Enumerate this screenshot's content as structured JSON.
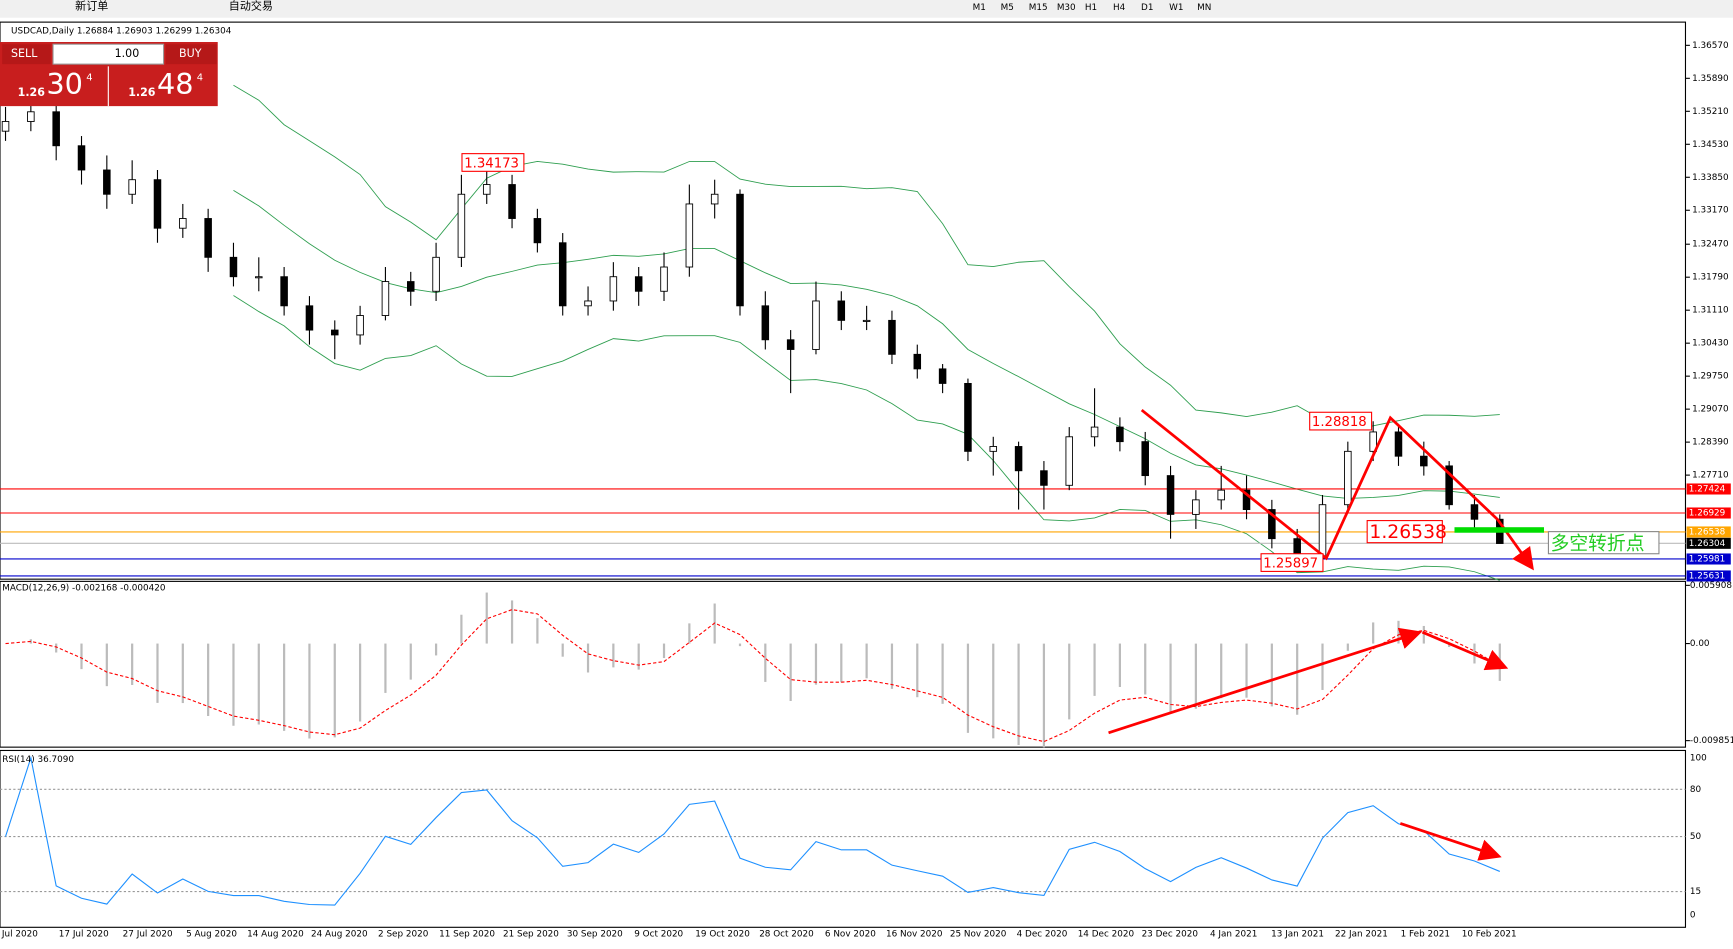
{
  "toolbar": {
    "new_order": "新订单",
    "auto_trading": "自动交易",
    "timeframes": [
      "M1",
      "M5",
      "M15",
      "M30",
      "H1",
      "H4",
      "D1",
      "W1",
      "MN"
    ]
  },
  "trade_panel": {
    "sell": "SELL",
    "buy": "BUY",
    "lots": "1.00",
    "sell_big": "1.26",
    "sell_pips": "30",
    "sell_point": "4",
    "buy_big": "1.26",
    "buy_pips": "48",
    "buy_point": "4"
  },
  "chart": {
    "symbol_info": "USDCAD,Daily  1.26884 1.26903 1.26299 1.26304",
    "ylim": [
      1.25588,
      1.37003
    ],
    "yticks": [
      {
        "value": 1.3657,
        "label": "1.36570"
      },
      {
        "value": 1.3589,
        "label": "1.35890"
      },
      {
        "value": 1.3521,
        "label": "1.35210"
      },
      {
        "value": 1.3453,
        "label": "1.34530"
      },
      {
        "value": 1.3385,
        "label": "1.33850"
      },
      {
        "value": 1.3317,
        "label": "1.33170"
      },
      {
        "value": 1.3247,
        "label": "1.32470"
      },
      {
        "value": 1.3179,
        "label": "1.31790"
      },
      {
        "value": 1.3111,
        "label": "1.31110"
      },
      {
        "value": 1.3043,
        "label": "1.30430"
      },
      {
        "value": 1.2975,
        "label": "1.29750"
      },
      {
        "value": 1.2907,
        "label": "1.29070"
      },
      {
        "value": 1.2839,
        "label": "1.28390"
      },
      {
        "value": 1.2771,
        "label": "1.27710"
      }
    ],
    "price_lines": [
      {
        "value": 1.27424,
        "color": "#ff0000"
      },
      {
        "value": 1.26929,
        "color": "#ff0000"
      },
      {
        "value": 1.26538,
        "color": "#ffa500"
      },
      {
        "value": 1.26304,
        "color": "#000000"
      },
      {
        "value": 1.25981,
        "color": "#0000cc"
      },
      {
        "value": 1.25631,
        "color": "#0000cc"
      }
    ],
    "candles": [
      [
        1.348,
        1.353,
        1.346,
        1.35
      ],
      [
        1.35,
        1.356,
        1.348,
        1.352
      ],
      [
        1.352,
        1.354,
        1.342,
        1.345
      ],
      [
        1.345,
        1.347,
        1.337,
        1.34
      ],
      [
        1.34,
        1.343,
        1.332,
        1.335
      ],
      [
        1.335,
        1.342,
        1.333,
        1.338
      ],
      [
        1.338,
        1.34,
        1.325,
        1.328
      ],
      [
        1.328,
        1.333,
        1.326,
        1.33
      ],
      [
        1.33,
        1.332,
        1.319,
        1.322
      ],
      [
        1.322,
        1.325,
        1.316,
        1.318
      ],
      [
        1.318,
        1.322,
        1.315,
        1.318
      ],
      [
        1.318,
        1.32,
        1.31,
        1.312
      ],
      [
        1.312,
        1.314,
        1.304,
        1.307
      ],
      [
        1.307,
        1.309,
        1.301,
        1.306
      ],
      [
        1.306,
        1.312,
        1.304,
        1.31
      ],
      [
        1.31,
        1.32,
        1.309,
        1.317
      ],
      [
        1.317,
        1.319,
        1.312,
        1.315
      ],
      [
        1.315,
        1.325,
        1.313,
        1.322
      ],
      [
        1.322,
        1.339,
        1.32,
        1.335
      ],
      [
        1.335,
        1.3417,
        1.333,
        1.337
      ],
      [
        1.337,
        1.339,
        1.328,
        1.33
      ],
      [
        1.33,
        1.332,
        1.323,
        1.325
      ],
      [
        1.325,
        1.327,
        1.31,
        1.312
      ],
      [
        1.312,
        1.316,
        1.31,
        1.313
      ],
      [
        1.313,
        1.321,
        1.311,
        1.318
      ],
      [
        1.318,
        1.32,
        1.312,
        1.315
      ],
      [
        1.315,
        1.323,
        1.313,
        1.32
      ],
      [
        1.32,
        1.337,
        1.318,
        1.333
      ],
      [
        1.333,
        1.338,
        1.33,
        1.335
      ],
      [
        1.335,
        1.336,
        1.31,
        1.312
      ],
      [
        1.312,
        1.315,
        1.303,
        1.305
      ],
      [
        1.305,
        1.307,
        1.294,
        1.303
      ],
      [
        1.303,
        1.317,
        1.302,
        1.313
      ],
      [
        1.313,
        1.315,
        1.307,
        1.309
      ],
      [
        1.309,
        1.312,
        1.307,
        1.309
      ],
      [
        1.309,
        1.311,
        1.3,
        1.302
      ],
      [
        1.302,
        1.304,
        1.297,
        1.299
      ],
      [
        1.299,
        1.3,
        1.294,
        1.296
      ],
      [
        1.296,
        1.297,
        1.28,
        1.282
      ],
      [
        1.282,
        1.285,
        1.277,
        1.283
      ],
      [
        1.283,
        1.284,
        1.27,
        1.278
      ],
      [
        1.278,
        1.28,
        1.27,
        1.275
      ],
      [
        1.275,
        1.287,
        1.274,
        1.285
      ],
      [
        1.285,
        1.295,
        1.283,
        1.287
      ],
      [
        1.287,
        1.289,
        1.282,
        1.284
      ],
      [
        1.284,
        1.286,
        1.275,
        1.277
      ],
      [
        1.277,
        1.279,
        1.264,
        1.269
      ],
      [
        1.269,
        1.274,
        1.266,
        1.272
      ],
      [
        1.272,
        1.279,
        1.27,
        1.274
      ],
      [
        1.274,
        1.277,
        1.268,
        1.27
      ],
      [
        1.27,
        1.272,
        1.262,
        1.264
      ],
      [
        1.264,
        1.266,
        1.259,
        1.26
      ],
      [
        1.26,
        1.273,
        1.259,
        1.271
      ],
      [
        1.271,
        1.284,
        1.27,
        1.282
      ],
      [
        1.282,
        1.2882,
        1.28,
        1.286
      ],
      [
        1.286,
        1.287,
        1.279,
        1.281
      ],
      [
        1.281,
        1.284,
        1.277,
        1.279
      ],
      [
        1.279,
        1.28,
        1.27,
        1.271
      ],
      [
        1.271,
        1.273,
        1.266,
        1.268
      ],
      [
        1.268,
        1.269,
        1.263,
        1.263
      ]
    ],
    "dates": [
      "Jul 2020",
      "17 Jul 2020",
      "27 Jul 2020",
      "5 Aug 2020",
      "14 Aug 2020",
      "24 Aug 2020",
      "2 Sep 2020",
      "11 Sep 2020",
      "21 Sep 2020",
      "30 Sep 2020",
      "9 Oct 2020",
      "19 Oct 2020",
      "28 Oct 2020",
      "6 Nov 2020",
      "16 Nov 2020",
      "25 Nov 2020",
      "4 Dec 2020",
      "14 Dec 2020",
      "23 Dec 2020",
      "4 Jan 2021",
      "13 Jan 2021",
      "22 Jan 2021",
      "1 Feb 2021",
      "10 Feb 2021"
    ],
    "annotations": [
      "1.34173",
      "1.28818",
      "1.26538",
      "1.25897",
      "多空转折点"
    ]
  },
  "macd": {
    "label": "MACD(12,26,9) -0.002168 -0.000420",
    "ylim": [
      -0.0104,
      0.0062
    ],
    "ticks": [
      0.005908,
      {
        "value": 0,
        "label": "0.00"
      },
      -0.009851
    ]
  },
  "rsi": {
    "label": "RSI(14) 36.7090",
    "ylim": [
      -7,
      104
    ],
    "ticks": [
      100,
      80,
      50,
      15,
      0
    ]
  }
}
